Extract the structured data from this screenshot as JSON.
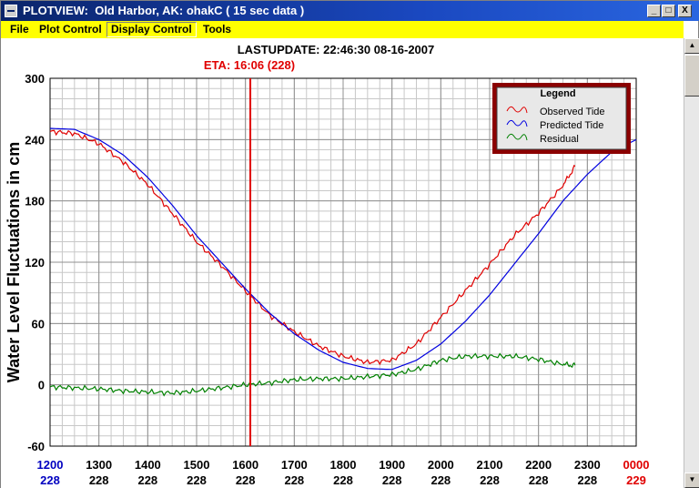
{
  "window": {
    "title": "PLOTVIEW:  Old Harbor, AK: ohakC ( 15 sec data )",
    "minimize_glyph": "_",
    "maximize_glyph": "□",
    "close_glyph": "X"
  },
  "menu": {
    "items": [
      "File",
      "Plot Control",
      "Display Control",
      "Tools"
    ],
    "active_index": 2
  },
  "header": {
    "last_update": "LASTUPDATE: 22:46:30  08-16-2007",
    "eta": "ETA: 16:06 (228)"
  },
  "colors": {
    "observed": "#e00000",
    "predicted": "#0000e0",
    "residual": "#008000",
    "eta_line": "#e00000",
    "legend_border": "#8b0000",
    "start_tick_label": "#0000c0",
    "end_tick_label": "#e00000"
  },
  "chart_data": {
    "type": "line",
    "title": "",
    "xlabel": "",
    "ylabel": "Water Level Fluctuations in cm",
    "ylim": [
      -60,
      300
    ],
    "xlim": [
      1200,
      2400
    ],
    "y_ticks": [
      300,
      240,
      180,
      120,
      60,
      0,
      -60
    ],
    "x_ticks": [
      {
        "time": "1200",
        "day": "228"
      },
      {
        "time": "1300",
        "day": "228"
      },
      {
        "time": "1400",
        "day": "228"
      },
      {
        "time": "1500",
        "day": "228"
      },
      {
        "time": "1600",
        "day": "228"
      },
      {
        "time": "1700",
        "day": "228"
      },
      {
        "time": "1800",
        "day": "228"
      },
      {
        "time": "1900",
        "day": "228"
      },
      {
        "time": "2000",
        "day": "228"
      },
      {
        "time": "2100",
        "day": "228"
      },
      {
        "time": "2200",
        "day": "228"
      },
      {
        "time": "2300",
        "day": "228"
      },
      {
        "time": "0000",
        "day": "229"
      }
    ],
    "grid": true,
    "legend": {
      "title": "Legend",
      "placement": "top-right",
      "entries": [
        "Observed Tide",
        "Predicted Tide",
        "Residual"
      ]
    },
    "eta_marker_x": 1606,
    "series": [
      {
        "name": "Observed Tide",
        "x": [
          1200,
          1230,
          1300,
          1330,
          1400,
          1430,
          1500,
          1530,
          1600,
          1630,
          1700,
          1730,
          1800,
          1830,
          1900,
          1930,
          2000,
          2030,
          2100,
          2130,
          2200,
          2230,
          2245
        ],
        "y": [
          248,
          246,
          236,
          218,
          196,
          168,
          140,
          117,
          92,
          68,
          52,
          38,
          28,
          22,
          24,
          40,
          66,
          92,
          118,
          146,
          168,
          195,
          214
        ]
      },
      {
        "name": "Predicted Tide",
        "x": [
          1200,
          1230,
          1300,
          1330,
          1400,
          1430,
          1500,
          1530,
          1600,
          1630,
          1700,
          1730,
          1800,
          1830,
          1900,
          1930,
          2000,
          2030,
          2100,
          2130,
          2200,
          2230,
          2300,
          2330,
          2400
        ],
        "y": [
          251,
          250,
          240,
          225,
          203,
          176,
          146,
          120,
          94,
          70,
          50,
          34,
          22,
          16,
          15,
          24,
          40,
          62,
          88,
          118,
          148,
          180,
          206,
          228,
          240
        ]
      },
      {
        "name": "Residual",
        "x": [
          1200,
          1230,
          1300,
          1330,
          1400,
          1430,
          1500,
          1530,
          1600,
          1630,
          1700,
          1730,
          1800,
          1830,
          1900,
          1930,
          2000,
          2030,
          2100,
          2130,
          2200,
          2230,
          2245
        ],
        "y": [
          -2,
          -3,
          -4,
          -6,
          -7,
          -8,
          -6,
          -3,
          0,
          2,
          5,
          6,
          6,
          8,
          10,
          15,
          24,
          28,
          28,
          28,
          25,
          20,
          19
        ]
      }
    ]
  }
}
